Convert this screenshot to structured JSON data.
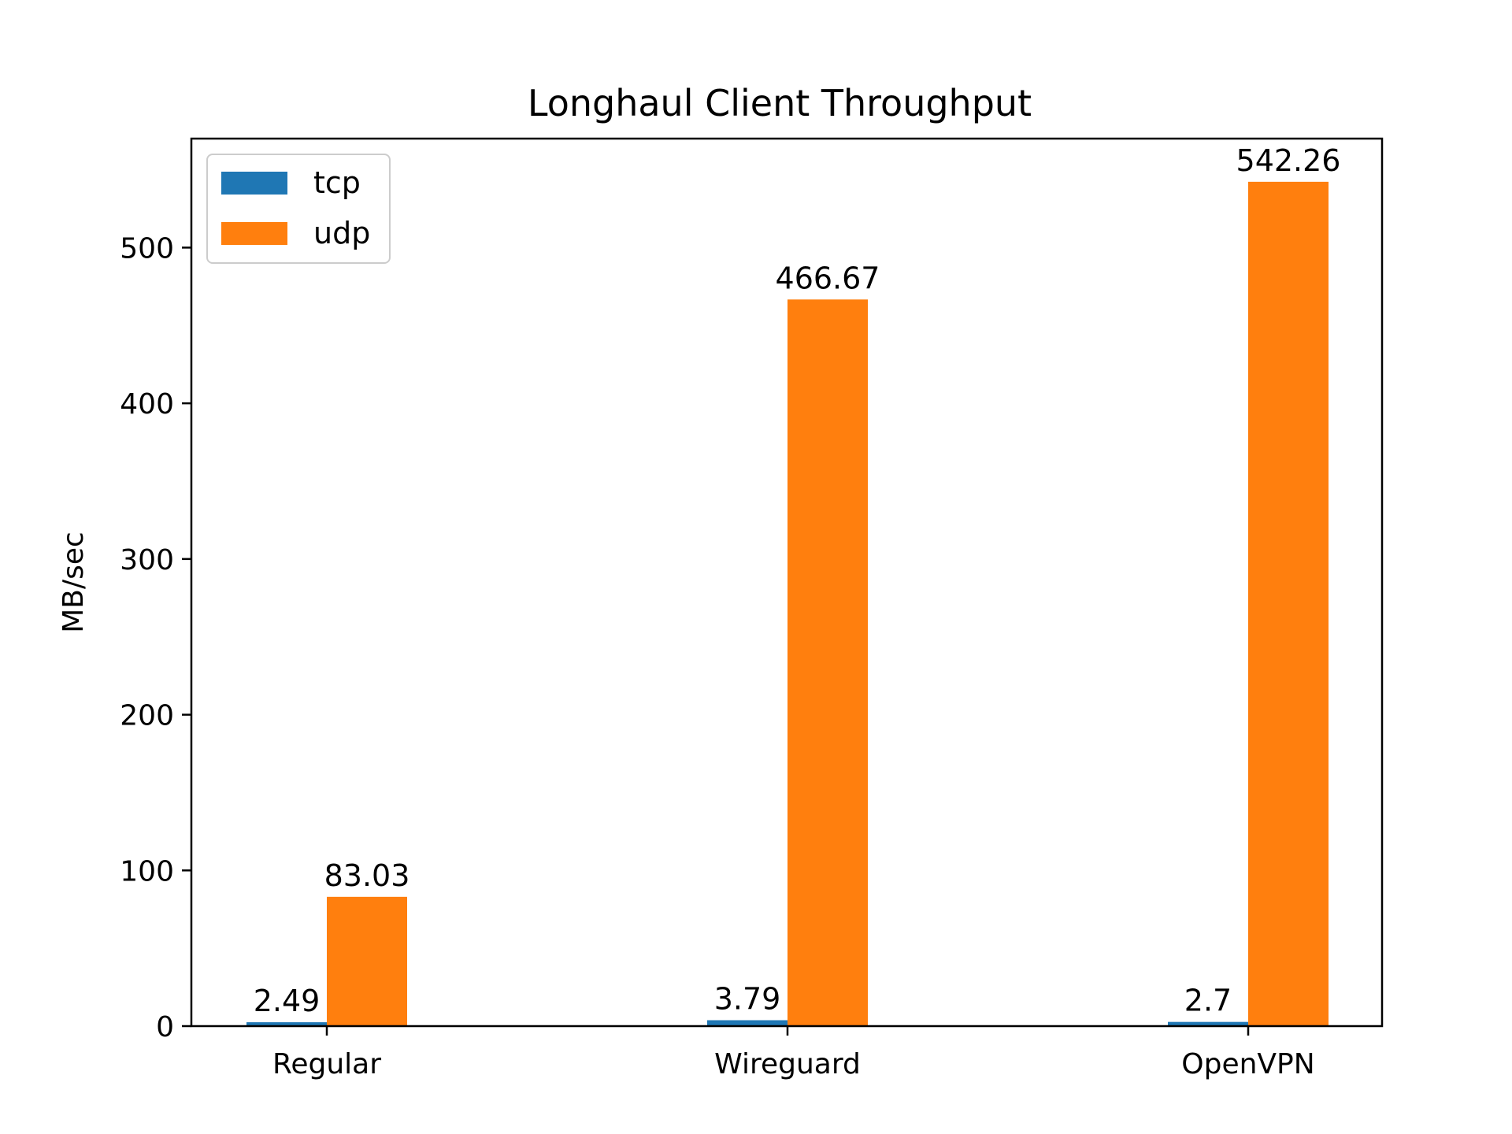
{
  "chart_data": {
    "type": "bar",
    "title": "Longhaul Client Throughput",
    "xlabel": "",
    "ylabel": "MB/sec",
    "categories": [
      "Regular",
      "Wireguard",
      "OpenVPN"
    ],
    "series": [
      {
        "name": "tcp",
        "values": [
          2.49,
          3.79,
          2.7
        ],
        "labels": [
          "2.49",
          "3.79",
          "2.7"
        ],
        "color": "#1f77b4"
      },
      {
        "name": "udp",
        "values": [
          83.03,
          466.67,
          542.26
        ],
        "labels": [
          "83.03",
          "466.67",
          "542.26"
        ],
        "color": "#ff7f0e"
      }
    ],
    "ylim": [
      0,
      570
    ],
    "yticks": [
      0,
      100,
      200,
      300,
      400,
      500
    ],
    "grid": false,
    "legend": "top-left"
  }
}
